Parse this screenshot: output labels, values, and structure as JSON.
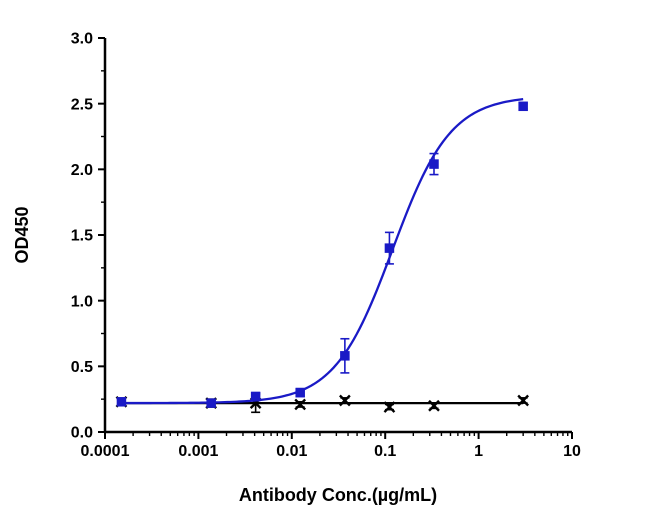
{
  "chart_data": {
    "type": "line",
    "title": "",
    "xlabel": "Antibody Conc.(µg/mL)",
    "ylabel": "OD450",
    "x_scale": "log",
    "xlim": [
      0.0001,
      10
    ],
    "ylim": [
      0.0,
      3.0
    ],
    "grid": false,
    "legend": "none",
    "x_ticks": {
      "values": [
        0.0001,
        0.001,
        0.01,
        0.1,
        1,
        10
      ],
      "labels": [
        "0.0001",
        "0.001",
        "0.01",
        "0.1",
        "1",
        "10"
      ]
    },
    "y_ticks": {
      "values": [
        0.0,
        0.5,
        1.0,
        1.5,
        2.0,
        2.5,
        3.0
      ],
      "labels": [
        "0.0",
        "0.5",
        "1.0",
        "1.5",
        "2.0",
        "2.5",
        "3.0"
      ]
    },
    "y_minor_step": 0.25,
    "series": [
      {
        "marker": "square",
        "color": "#1a1ac6",
        "x": [
          0.00015,
          0.00137,
          0.0041,
          0.0123,
          0.037,
          0.111,
          0.333,
          3
        ],
        "y": [
          0.23,
          0.22,
          0.27,
          0.3,
          0.58,
          1.4,
          2.04,
          2.48
        ],
        "yerr": [
          0.02,
          0.02,
          0.03,
          0.03,
          0.13,
          0.12,
          0.08,
          0.02
        ],
        "fit": {
          "type": "4pl",
          "bottom": 0.22,
          "top": 2.56,
          "ec50": 0.12,
          "hill": 1.4
        }
      },
      {
        "marker": "x",
        "color": "#000000",
        "x": [
          0.00015,
          0.00137,
          0.0041,
          0.0123,
          0.037,
          0.111,
          0.333,
          3
        ],
        "y": [
          0.23,
          0.22,
          0.22,
          0.21,
          0.24,
          0.19,
          0.2,
          0.24
        ],
        "yerr": [
          0.02,
          0.03,
          0.07,
          0.02,
          0.02,
          0.02,
          0.02,
          0.02
        ],
        "fit": {
          "type": "flat",
          "value": 0.22
        }
      }
    ]
  }
}
